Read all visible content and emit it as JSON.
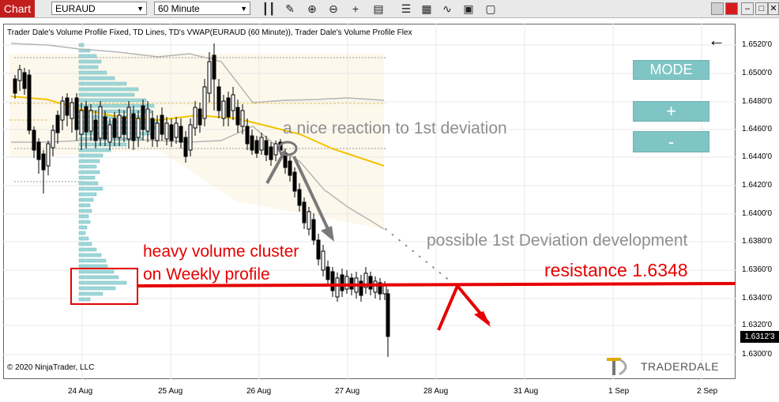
{
  "toolbar": {
    "tab_label": "Chart",
    "instrument": "EURAUD",
    "timeframe": "60 Minute",
    "icons": [
      "bar-style-icon",
      "pencil-icon",
      "zoom-in-icon",
      "zoom-out-icon",
      "crosshair-icon",
      "data-box-icon",
      "properties-icon",
      "strategy-icon",
      "indicators-icon",
      "templates-icon"
    ]
  },
  "chart": {
    "indicator_label": "Trader Dale's Volume Profile Fixed, TD Lines, TD's VWAP(EURAUD (60 Minute)), Trader Dale's Volume Profile Flex",
    "copyright": "© 2020 NinjaTrader, LLC",
    "logo_text": "TRADERDALE",
    "mode_button": "MODE",
    "plus_button": "+",
    "minus_button": "-",
    "last_price": "1.6312'3",
    "colors": {
      "resistance": "#e60000",
      "vwap": "#f2c300",
      "profile": "#7cc6c9",
      "annotation_gray": "#8f8f8f"
    }
  },
  "annotations": {
    "reaction": "a nice reaction to 1st deviation",
    "possible": "possible 1st Deviation development",
    "heavy_line1": "heavy volume cluster",
    "heavy_line2": "on Weekly profile",
    "resistance": "resistance 1.6348"
  },
  "price_axis": [
    "1.6520'0",
    "1.6500'0",
    "1.6480'0",
    "1.6460'0",
    "1.6440'0",
    "1.6420'0",
    "1.6400'0",
    "1.6380'0",
    "1.6360'0",
    "1.6340'0",
    "1.6320'0",
    "1.6300'0"
  ],
  "time_axis": [
    "24 Aug",
    "25 Aug",
    "26 Aug",
    "27 Aug",
    "28 Aug",
    "31 Aug",
    "1 Sep",
    "2 Sep"
  ]
}
